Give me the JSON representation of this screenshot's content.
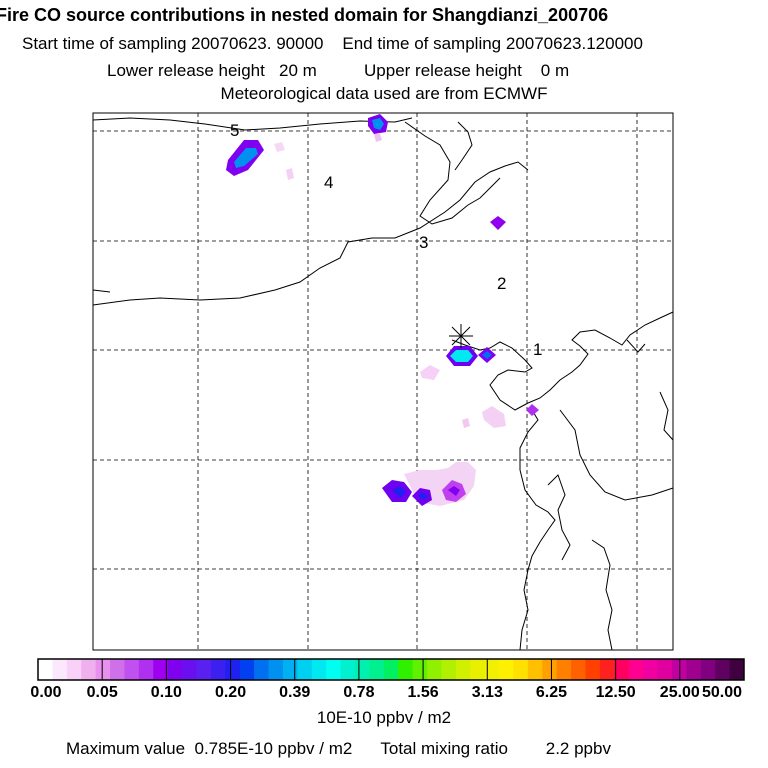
{
  "chart_data": {
    "type": "heatmap",
    "title": "Fire CO source contributions in nested domain for Shangdianzi_200706",
    "subtitle_lines": [
      "Start time of sampling 20070623. 90000",
      "End time of sampling 20070623.120000",
      "Lower release height",
      "20 m",
      "Upper release height",
      "0 m",
      "Meteorological data used are from ECMWF"
    ],
    "station_marker": "asterisk",
    "region_labels": [
      "1",
      "2",
      "3",
      "4",
      "5"
    ],
    "colorbar": {
      "tick_labels": [
        "0.00",
        "0.05",
        "0.10",
        "0.20",
        "0.39",
        "0.78",
        "1.56",
        "3.13",
        "6.25",
        "12.50",
        "25.00",
        "50.00"
      ],
      "tick_values": [
        0.0,
        0.05,
        0.1,
        0.2,
        0.39,
        0.78,
        1.56,
        3.13,
        6.25,
        12.5,
        25.0,
        50.0
      ],
      "unit_label": "10E-10 ppbv / m2",
      "colors": [
        "#ffffff",
        "#fce8fc",
        "#f8d0f8",
        "#f0b0f0",
        "#e890ee",
        "#d070e8",
        "#c050f0",
        "#b030f0",
        "#a000f0",
        "#8000f0",
        "#6a10f0",
        "#5a20f0",
        "#3c20f0",
        "#2020f0",
        "#0040f0",
        "#0070f0",
        "#0090f0",
        "#00b0f0",
        "#00d0f0",
        "#00e8f0",
        "#00fff0",
        "#00f0d0",
        "#00f0b0",
        "#00f090",
        "#00f060",
        "#30f000",
        "#60f000",
        "#90f000",
        "#b0f000",
        "#d0f000",
        "#e8f000",
        "#f0f000",
        "#fff000",
        "#ffe000",
        "#ffc000",
        "#ffa000",
        "#ff8000",
        "#ff6000",
        "#ff4000",
        "#ff2020",
        "#ff0060",
        "#ff0090",
        "#f000a0",
        "#e000a0",
        "#c000a0",
        "#a00090",
        "#800080",
        "#600060",
        "#400040"
      ]
    },
    "footer": {
      "max_label": "Maximum value",
      "max_value": "0.785E-10 ppbv / m2",
      "total_label": "Total mixing ratio",
      "total_value": "2.2 ppbv"
    }
  }
}
